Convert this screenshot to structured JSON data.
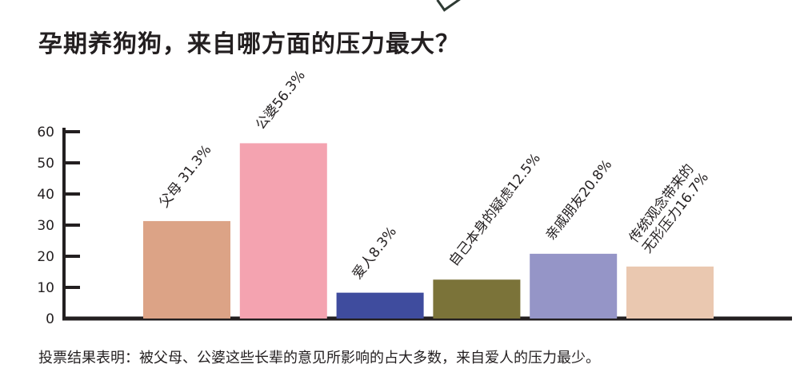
{
  "title": "孕期养狗狗，来自哪方面的压力最大？",
  "caption": "投票结果表明：被父母、公婆这些长辈的意见所影响的占大多数，来自爱人的压力最少。",
  "chart_data": {
    "type": "bar",
    "ylim": [
      0,
      60
    ],
    "yticks": [
      0,
      10,
      20,
      30,
      40,
      50,
      60
    ],
    "grid": false,
    "bars": [
      {
        "category": "父母",
        "value": 31.3,
        "label": [
          "父母 31.3%"
        ],
        "color": "#dca386"
      },
      {
        "category": "公婆",
        "value": 56.3,
        "label": [
          "公婆56.3%"
        ],
        "color": "#f4a3b0"
      },
      {
        "category": "爱人",
        "value": 8.3,
        "label": [
          "爱人8.3%"
        ],
        "color": "#3f4c9e"
      },
      {
        "category": "自己本身的疑虑",
        "value": 12.5,
        "label": [
          "自己本身的疑虑12.5%"
        ],
        "color": "#7b7339"
      },
      {
        "category": "亲戚朋友",
        "value": 20.8,
        "label": [
          "亲戚朋友20.8%"
        ],
        "color": "#9595c7"
      },
      {
        "category": "传统观念带来的无形压力",
        "value": 16.7,
        "label": [
          "传统观念带来的",
          "无形压力16.7%"
        ],
        "color": "#eac8b0"
      }
    ]
  }
}
